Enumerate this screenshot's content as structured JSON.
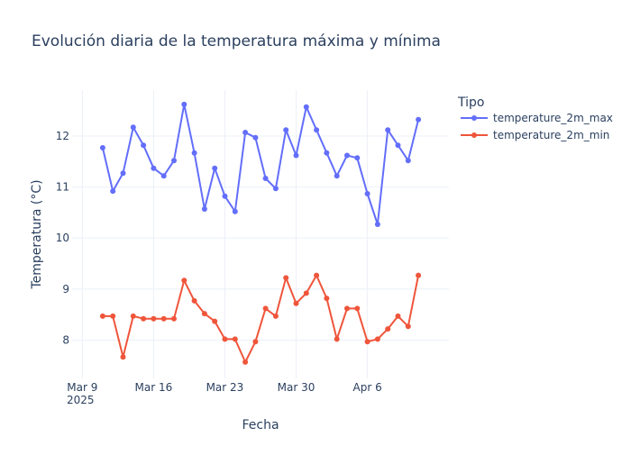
{
  "chart_data": {
    "type": "line",
    "title": "Evolución diaria de la temperatura máxima y mínima",
    "xlabel": "Fecha",
    "ylabel": "Temperatura (°C)",
    "x_start_date": "2025-03-11",
    "x_ticks": [
      {
        "date": "2025-03-09",
        "label": "Mar 9",
        "sublabel": "2025"
      },
      {
        "date": "2025-03-16",
        "label": "Mar 16",
        "sublabel": ""
      },
      {
        "date": "2025-03-23",
        "label": "Mar 23",
        "sublabel": ""
      },
      {
        "date": "2025-03-30",
        "label": "Mar 30",
        "sublabel": ""
      },
      {
        "date": "2025-04-06",
        "label": "Apr 6",
        "sublabel": ""
      }
    ],
    "x_range": [
      "2025-03-08",
      "2025-04-14"
    ],
    "y_ticks": [
      8,
      9,
      10,
      11,
      12
    ],
    "ylim": [
      7.25,
      12.9
    ],
    "grid": true,
    "legend": {
      "title": "Tipo",
      "position": "top-right"
    },
    "series": [
      {
        "name": "temperature_2m_max",
        "color": "#636efa",
        "values": [
          11.77,
          10.92,
          11.27,
          12.17,
          11.82,
          11.37,
          11.22,
          11.52,
          12.62,
          11.67,
          10.57,
          11.37,
          10.82,
          10.52,
          12.07,
          11.97,
          11.17,
          10.97,
          12.12,
          11.62,
          12.57,
          12.12,
          11.67,
          11.22,
          11.62,
          11.57,
          10.87,
          10.27,
          12.12,
          11.82,
          11.52,
          12.32
        ]
      },
      {
        "name": "temperature_2m_min",
        "color": "#ef553b",
        "values": [
          8.47,
          8.47,
          7.67,
          8.47,
          8.42,
          8.42,
          8.42,
          8.42,
          9.17,
          8.77,
          8.52,
          8.37,
          8.02,
          8.02,
          7.57,
          7.97,
          8.62,
          8.47,
          9.22,
          8.72,
          8.92,
          9.27,
          8.82,
          8.02,
          8.62,
          8.62,
          7.97,
          8.02,
          8.22,
          8.47,
          8.27,
          9.27
        ]
      }
    ]
  }
}
